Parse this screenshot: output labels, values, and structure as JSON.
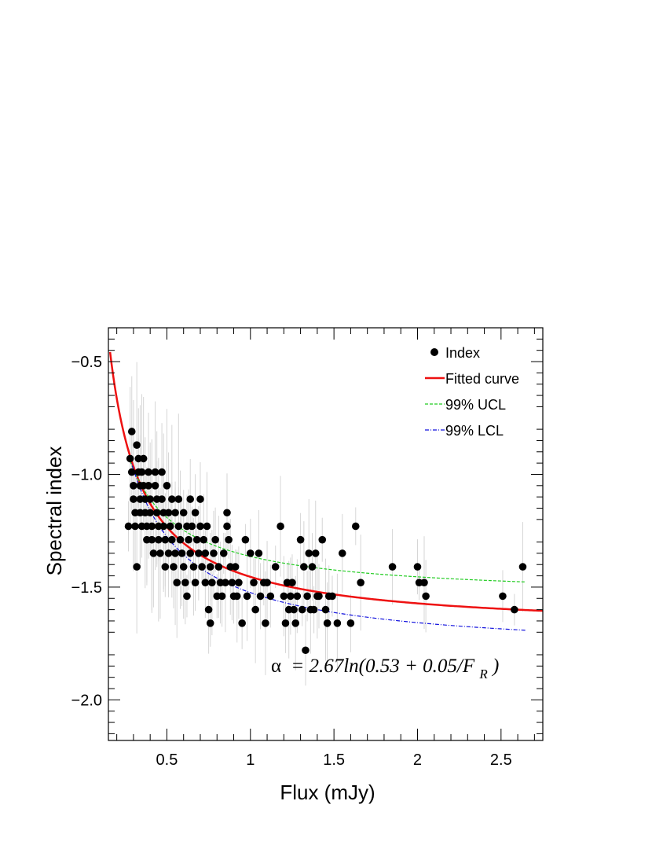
{
  "chart_data": {
    "type": "scatter",
    "xlabel": "Flux (mJy)",
    "ylabel": "Spectral index",
    "xlim": [
      0.15,
      2.75
    ],
    "ylim": [
      -2.18,
      -0.35
    ],
    "x_ticks": [
      0.5,
      1,
      1.5,
      2,
      2.5
    ],
    "x_tick_labels": [
      "0.5",
      "1",
      "1.5",
      "2",
      "2.5"
    ],
    "y_ticks": [
      -0.5,
      -1.0,
      -1.5,
      -2.0
    ],
    "y_tick_labels": [
      "−0.5",
      "−1.0",
      "−1.5",
      "−2.0"
    ],
    "grid": false,
    "legend_position": "top-right",
    "formula": {
      "alpha_symbol": "α",
      "rhs": "= 2.67ln(0.53 + 0.05/F",
      "subscript": "R",
      "close": ")"
    },
    "colors": {
      "index": "#000000",
      "fitted": "#ee1111",
      "ucl": "#22cc22",
      "lcl": "#1111dd",
      "error_bar": "#d6d6d6"
    },
    "series": [
      {
        "name": "Index",
        "kind": "points",
        "points": [
          [
            0.27,
            -1.23
          ],
          [
            0.28,
            -0.93
          ],
          [
            0.29,
            -0.81
          ],
          [
            0.29,
            -0.99
          ],
          [
            0.3,
            -1.05
          ],
          [
            0.3,
            -1.11
          ],
          [
            0.31,
            -1.17
          ],
          [
            0.31,
            -1.23
          ],
          [
            0.32,
            -0.87
          ],
          [
            0.32,
            -1.41
          ],
          [
            0.33,
            -0.93
          ],
          [
            0.33,
            -0.99
          ],
          [
            0.34,
            -1.05
          ],
          [
            0.34,
            -1.11
          ],
          [
            0.34,
            -1.17
          ],
          [
            0.35,
            -1.23
          ],
          [
            0.35,
            -0.99
          ],
          [
            0.36,
            -0.93
          ],
          [
            0.36,
            -1.05
          ],
          [
            0.37,
            -1.11
          ],
          [
            0.37,
            -1.17
          ],
          [
            0.38,
            -1.23
          ],
          [
            0.38,
            -1.29
          ],
          [
            0.39,
            -0.99
          ],
          [
            0.39,
            -1.05
          ],
          [
            0.4,
            -1.11
          ],
          [
            0.4,
            -1.17
          ],
          [
            0.41,
            -1.23
          ],
          [
            0.41,
            -1.29
          ],
          [
            0.42,
            -1.35
          ],
          [
            0.43,
            -0.99
          ],
          [
            0.43,
            -1.05
          ],
          [
            0.44,
            -1.11
          ],
          [
            0.44,
            -1.17
          ],
          [
            0.45,
            -1.23
          ],
          [
            0.45,
            -1.29
          ],
          [
            0.46,
            -1.35
          ],
          [
            0.47,
            -0.99
          ],
          [
            0.47,
            -1.11
          ],
          [
            0.48,
            -1.17
          ],
          [
            0.48,
            -1.23
          ],
          [
            0.49,
            -1.29
          ],
          [
            0.49,
            -1.41
          ],
          [
            0.5,
            -1.05
          ],
          [
            0.51,
            -1.17
          ],
          [
            0.51,
            -1.35
          ],
          [
            0.52,
            -1.23
          ],
          [
            0.53,
            -1.11
          ],
          [
            0.53,
            -1.29
          ],
          [
            0.54,
            -1.41
          ],
          [
            0.55,
            -1.17
          ],
          [
            0.55,
            -1.35
          ],
          [
            0.56,
            -1.48
          ],
          [
            0.57,
            -1.23
          ],
          [
            0.57,
            -1.11
          ],
          [
            0.58,
            -1.29
          ],
          [
            0.59,
            -1.35
          ],
          [
            0.6,
            -1.17
          ],
          [
            0.6,
            -1.41
          ],
          [
            0.61,
            -1.48
          ],
          [
            0.62,
            -1.23
          ],
          [
            0.62,
            -1.54
          ],
          [
            0.63,
            -1.29
          ],
          [
            0.64,
            -1.11
          ],
          [
            0.64,
            -1.35
          ],
          [
            0.65,
            -1.23
          ],
          [
            0.66,
            -1.41
          ],
          [
            0.67,
            -1.17
          ],
          [
            0.67,
            -1.48
          ],
          [
            0.68,
            -1.29
          ],
          [
            0.69,
            -1.35
          ],
          [
            0.7,
            -1.11
          ],
          [
            0.7,
            -1.23
          ],
          [
            0.71,
            -1.41
          ],
          [
            0.72,
            -1.29
          ],
          [
            0.73,
            -1.48
          ],
          [
            0.73,
            -1.35
          ],
          [
            0.74,
            -1.23
          ],
          [
            0.75,
            -1.6
          ],
          [
            0.76,
            -1.41
          ],
          [
            0.76,
            -1.66
          ],
          [
            0.77,
            -1.48
          ],
          [
            0.78,
            -1.35
          ],
          [
            0.79,
            -1.29
          ],
          [
            0.8,
            -1.54
          ],
          [
            0.81,
            -1.41
          ],
          [
            0.82,
            -1.48
          ],
          [
            0.83,
            -1.54
          ],
          [
            0.84,
            -1.35
          ],
          [
            0.85,
            -1.48
          ],
          [
            0.86,
            -1.17
          ],
          [
            0.86,
            -1.23
          ],
          [
            0.87,
            -1.29
          ],
          [
            0.88,
            -1.41
          ],
          [
            0.89,
            -1.48
          ],
          [
            0.9,
            -1.54
          ],
          [
            0.91,
            -1.41
          ],
          [
            0.92,
            -1.54
          ],
          [
            0.93,
            -1.48
          ],
          [
            0.95,
            -1.66
          ],
          [
            0.97,
            -1.29
          ],
          [
            0.98,
            -1.54
          ],
          [
            1.0,
            -1.35
          ],
          [
            1.02,
            -1.48
          ],
          [
            1.03,
            -1.6
          ],
          [
            1.05,
            -1.35
          ],
          [
            1.06,
            -1.54
          ],
          [
            1.08,
            -1.48
          ],
          [
            1.09,
            -1.66
          ],
          [
            1.1,
            -1.48
          ],
          [
            1.12,
            -1.54
          ],
          [
            1.15,
            -1.41
          ],
          [
            1.18,
            -1.23
          ],
          [
            1.2,
            -1.54
          ],
          [
            1.21,
            -1.66
          ],
          [
            1.22,
            -1.48
          ],
          [
            1.23,
            -1.6
          ],
          [
            1.24,
            -1.54
          ],
          [
            1.25,
            -1.48
          ],
          [
            1.26,
            -1.6
          ],
          [
            1.27,
            -1.66
          ],
          [
            1.28,
            -1.54
          ],
          [
            1.3,
            -1.29
          ],
          [
            1.31,
            -1.6
          ],
          [
            1.32,
            -1.41
          ],
          [
            1.33,
            -1.78
          ],
          [
            1.34,
            -1.54
          ],
          [
            1.35,
            -1.35
          ],
          [
            1.36,
            -1.6
          ],
          [
            1.37,
            -1.41
          ],
          [
            1.38,
            -1.6
          ],
          [
            1.39,
            -1.35
          ],
          [
            1.4,
            -1.54
          ],
          [
            1.41,
            -1.54
          ],
          [
            1.43,
            -1.29
          ],
          [
            1.45,
            -1.6
          ],
          [
            1.46,
            -1.66
          ],
          [
            1.47,
            -1.54
          ],
          [
            1.49,
            -1.54
          ],
          [
            1.52,
            -1.66
          ],
          [
            1.55,
            -1.35
          ],
          [
            1.6,
            -1.66
          ],
          [
            1.63,
            -1.23
          ],
          [
            1.66,
            -1.48
          ],
          [
            1.85,
            -1.41
          ],
          [
            2.0,
            -1.41
          ],
          [
            2.01,
            -1.48
          ],
          [
            2.04,
            -1.48
          ],
          [
            2.05,
            -1.54
          ],
          [
            2.51,
            -1.54
          ],
          [
            2.58,
            -1.6
          ],
          [
            2.63,
            -1.41
          ]
        ]
      },
      {
        "name": "Fitted curve",
        "kind": "curve",
        "a": 2.67,
        "b": 0.53,
        "c": 0.05,
        "x_range": [
          0.16,
          2.75
        ]
      },
      {
        "name": "99% UCL",
        "kind": "curve",
        "a": 2.67,
        "b": 0.56,
        "c": 0.04,
        "x_range": [
          0.28,
          2.65
        ]
      },
      {
        "name": "99% LCL",
        "kind": "curve",
        "a": 2.67,
        "b": 0.51,
        "c": 0.055,
        "x_range": [
          0.28,
          2.65
        ]
      }
    ]
  }
}
